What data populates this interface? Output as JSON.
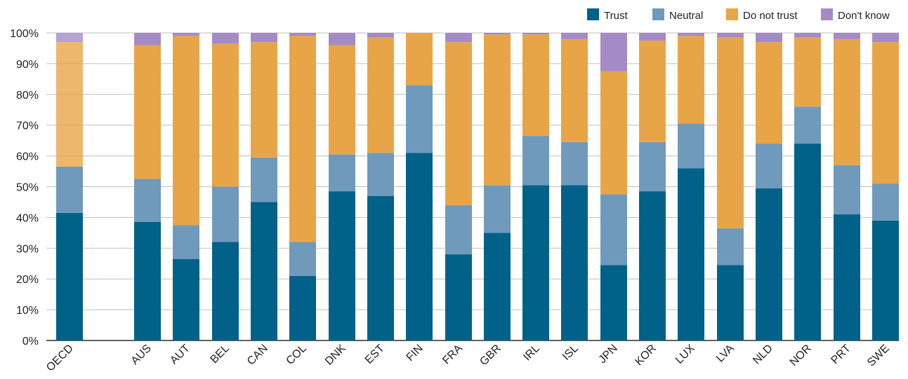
{
  "chart_data": {
    "type": "bar",
    "stacked": true,
    "title": "",
    "xlabel": "",
    "ylabel": "",
    "ylim": [
      0,
      100
    ],
    "y_tick_labels": [
      "0%",
      "10%",
      "20%",
      "30%",
      "40%",
      "50%",
      "60%",
      "70%",
      "80%",
      "90%",
      "100%"
    ],
    "y_tick_values": [
      0,
      10,
      20,
      30,
      40,
      50,
      60,
      70,
      80,
      90,
      100
    ],
    "grid": "horizontal",
    "legend_placement": "top-right",
    "categories": [
      "OECD",
      "AUS",
      "AUT",
      "BEL",
      "CAN",
      "COL",
      "DNK",
      "EST",
      "FIN",
      "FRA",
      "GBR",
      "IRL",
      "ISL",
      "JPN",
      "KOR",
      "LUX",
      "LVA",
      "NLD",
      "NOR",
      "PRT",
      "SWE"
    ],
    "series": [
      {
        "name": "Trust",
        "color": "#006189",
        "values": [
          41.5,
          38.5,
          26.5,
          32,
          45,
          21,
          48.5,
          47,
          61,
          28,
          35,
          50.5,
          50.5,
          24.5,
          48.5,
          56,
          24.5,
          49.5,
          64,
          41,
          39
        ]
      },
      {
        "name": "Neutral",
        "color": "#6f9abc",
        "values": [
          15,
          14,
          11,
          18,
          14.5,
          11,
          12,
          14,
          22,
          16,
          15.5,
          16,
          14,
          23,
          16,
          14.5,
          12,
          14.5,
          12,
          16,
          12
        ]
      },
      {
        "name": "Do not trust",
        "color": "#e8a547",
        "values": [
          40.5,
          43.5,
          61.5,
          46.5,
          37.5,
          67,
          35.5,
          37.5,
          17,
          53,
          49,
          33,
          33.5,
          40,
          33,
          28.5,
          62,
          33,
          22.5,
          41,
          46
        ]
      },
      {
        "name": "Don't know",
        "color": "#a58bc5",
        "values": [
          3,
          4,
          1,
          3.5,
          3,
          1,
          4,
          1.5,
          0,
          3,
          0.5,
          0.5,
          2,
          12.5,
          2.5,
          1,
          1.5,
          3,
          1.5,
          2,
          3
        ]
      }
    ],
    "highlighted_category": "OECD",
    "highlight_opacity": 0.8
  }
}
